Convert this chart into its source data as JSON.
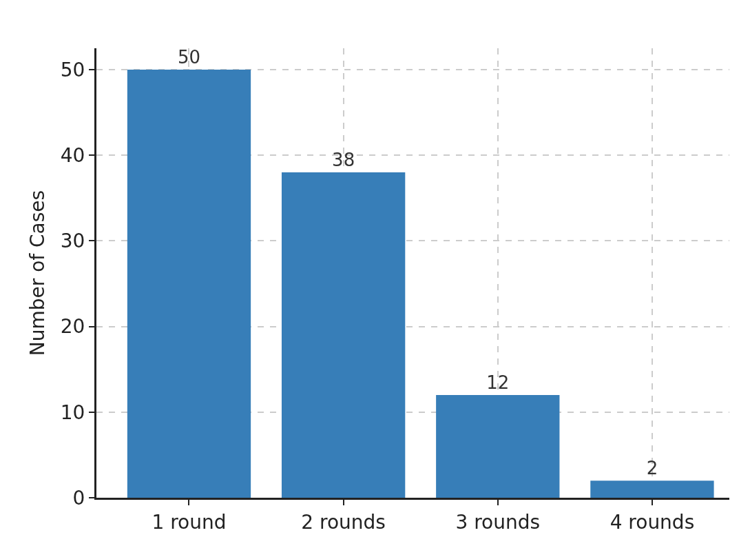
{
  "chart_data": {
    "type": "bar",
    "ylabel": "Number of Cases",
    "categories": [
      "1 round",
      "2 rounds",
      "3 rounds",
      "4 rounds"
    ],
    "values": [
      50,
      38,
      12,
      2
    ],
    "color": "#377eb8",
    "ylim": [
      0,
      52.5
    ],
    "yticks": [
      0,
      10,
      20,
      30,
      40,
      50
    ],
    "grid": true,
    "data_labels": true
  }
}
